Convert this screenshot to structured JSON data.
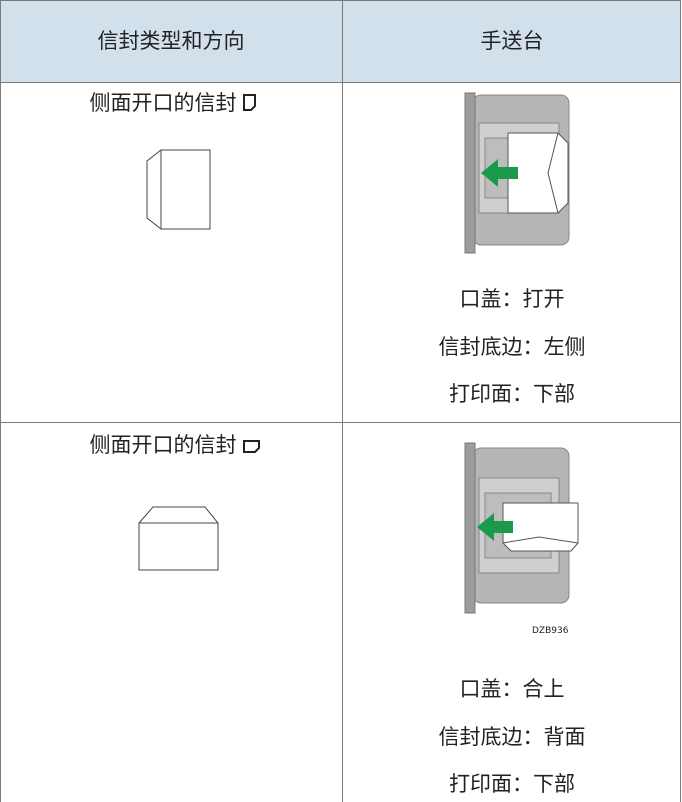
{
  "table": {
    "header": [
      "信封类型和方向",
      "手送台"
    ],
    "rows": [
      {
        "type": "侧面开口的信封",
        "settings": [
          "口盖：打开",
          "信封底边：左侧",
          "打印面：下部"
        ]
      },
      {
        "type": "侧面开口的信封",
        "figure_code": "DZB936",
        "settings": [
          "口盖：合上",
          "信封底边：背面",
          "打印面：下部"
        ]
      }
    ]
  }
}
